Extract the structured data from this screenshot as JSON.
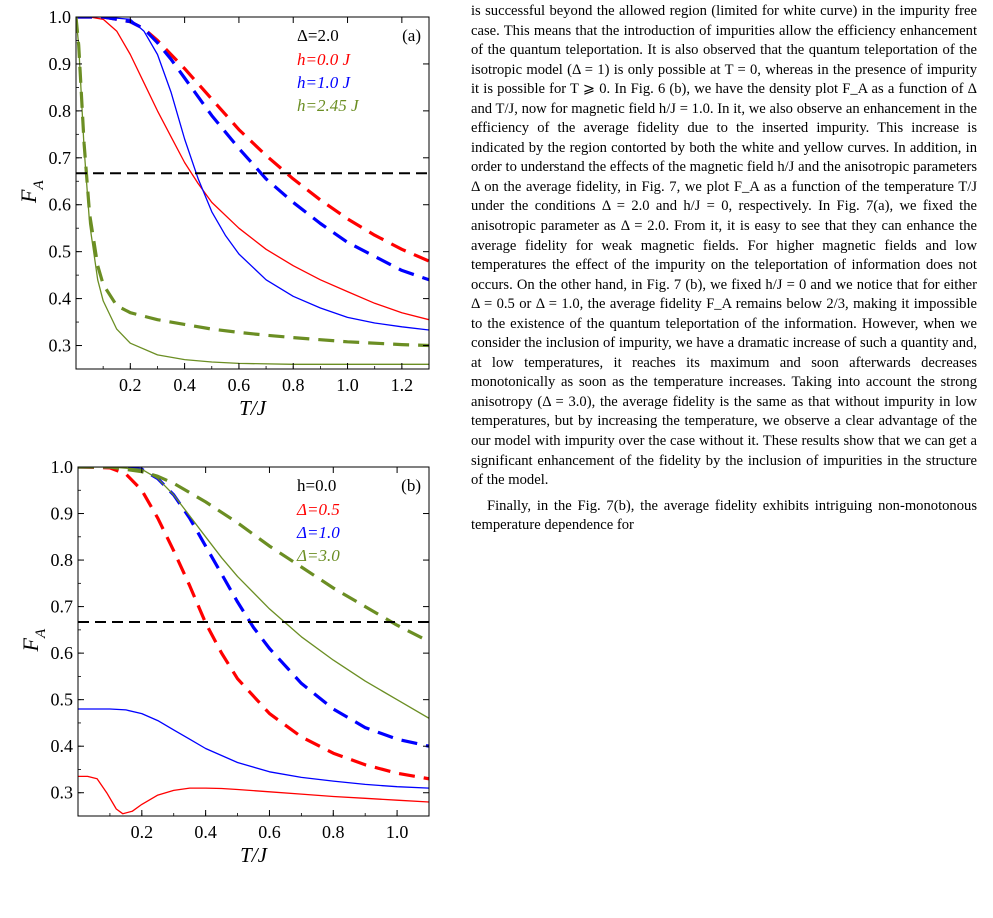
{
  "figure": {
    "panels": [
      {
        "panel_label": "(a)",
        "ylabel": "F",
        "ylabel_sub": "A",
        "xlabel": "T/J",
        "legend_title": "Δ=2.0",
        "legend": [
          {
            "text": "h=0.0 J",
            "color": "#ff0000"
          },
          {
            "text": "h=1.0 J",
            "color": "#0000ff"
          },
          {
            "text": "h=2.45 J",
            "color": "#6b8e23"
          }
        ]
      },
      {
        "panel_label": "(b)",
        "ylabel": "F",
        "ylabel_sub": "A",
        "xlabel": "T/J",
        "legend_title": "h=0.0",
        "legend": [
          {
            "text": "Δ=0.5",
            "color": "#ff0000"
          },
          {
            "text": "Δ=1.0",
            "color": "#0000ff"
          },
          {
            "text": "Δ=3.0",
            "color": "#6b8e23"
          }
        ]
      }
    ]
  },
  "chart_data": [
    {
      "type": "line",
      "title": "",
      "panel": "(a)",
      "xlabel": "T/J",
      "ylabel": "F_A",
      "xlim": [
        0,
        1.3
      ],
      "ylim": [
        0.25,
        1.0
      ],
      "xticks": [
        0.2,
        0.4,
        0.6,
        0.8,
        1.0,
        1.2
      ],
      "yticks": [
        0.3,
        0.4,
        0.5,
        0.6,
        0.7,
        0.8,
        0.9,
        1.0
      ],
      "series": [
        {
          "name": "h=0.0 J",
          "style": "solid",
          "color": "#ff0000",
          "x": [
            0,
            0.05,
            0.1,
            0.15,
            0.2,
            0.25,
            0.3,
            0.35,
            0.4,
            0.45,
            0.5,
            0.6,
            0.7,
            0.8,
            0.9,
            1.0,
            1.1,
            1.2,
            1.3
          ],
          "y": [
            1.0,
            1.0,
            0.995,
            0.97,
            0.92,
            0.86,
            0.8,
            0.745,
            0.69,
            0.645,
            0.605,
            0.55,
            0.505,
            0.47,
            0.44,
            0.415,
            0.39,
            0.37,
            0.355
          ]
        },
        {
          "name": "h=0.0 J",
          "style": "dashed",
          "color": "#ff0000",
          "x": [
            0,
            0.1,
            0.2,
            0.25,
            0.3,
            0.35,
            0.4,
            0.5,
            0.6,
            0.7,
            0.8,
            0.9,
            1.0,
            1.1,
            1.2,
            1.3
          ],
          "y": [
            1.0,
            1.0,
            0.99,
            0.975,
            0.95,
            0.92,
            0.89,
            0.825,
            0.76,
            0.705,
            0.655,
            0.61,
            0.57,
            0.535,
            0.505,
            0.48
          ]
        },
        {
          "name": "h=1.0 J",
          "style": "solid",
          "color": "#0000ff",
          "x": [
            0,
            0.1,
            0.2,
            0.25,
            0.3,
            0.35,
            0.4,
            0.45,
            0.5,
            0.55,
            0.6,
            0.7,
            0.8,
            0.9,
            1.0,
            1.1,
            1.2,
            1.3
          ],
          "y": [
            1.0,
            1.0,
            0.995,
            0.97,
            0.92,
            0.84,
            0.74,
            0.655,
            0.585,
            0.535,
            0.495,
            0.44,
            0.405,
            0.38,
            0.36,
            0.348,
            0.34,
            0.333
          ]
        },
        {
          "name": "h=1.0 J",
          "style": "dashed",
          "color": "#0000ff",
          "x": [
            0,
            0.1,
            0.2,
            0.25,
            0.3,
            0.35,
            0.4,
            0.5,
            0.6,
            0.7,
            0.8,
            0.9,
            1.0,
            1.1,
            1.2,
            1.3
          ],
          "y": [
            1.0,
            1.0,
            0.99,
            0.975,
            0.945,
            0.91,
            0.87,
            0.79,
            0.72,
            0.655,
            0.605,
            0.56,
            0.52,
            0.49,
            0.46,
            0.44
          ]
        },
        {
          "name": "h=2.45 J",
          "style": "solid",
          "color": "#6b8e23",
          "x": [
            0,
            0.01,
            0.03,
            0.05,
            0.08,
            0.1,
            0.15,
            0.2,
            0.3,
            0.4,
            0.5,
            0.6,
            0.8,
            1.0,
            1.3
          ],
          "y": [
            1.0,
            0.94,
            0.72,
            0.56,
            0.44,
            0.395,
            0.335,
            0.305,
            0.28,
            0.27,
            0.265,
            0.262,
            0.26,
            0.26,
            0.26
          ]
        },
        {
          "name": "h=2.45 J",
          "style": "dashed",
          "color": "#6b8e23",
          "x": [
            0,
            0.01,
            0.03,
            0.05,
            0.08,
            0.1,
            0.15,
            0.2,
            0.3,
            0.4,
            0.5,
            0.6,
            0.7,
            0.8,
            1.0,
            1.2,
            1.3
          ],
          "y": [
            1.0,
            0.94,
            0.73,
            0.58,
            0.47,
            0.43,
            0.385,
            0.37,
            0.355,
            0.345,
            0.335,
            0.328,
            0.322,
            0.317,
            0.308,
            0.302,
            0.3
          ]
        },
        {
          "name": "",
          "style": "dashed",
          "color": "#000000",
          "x": [
            0,
            1.3
          ],
          "y": [
            0.667,
            0.667
          ]
        }
      ],
      "grid": false,
      "legend_position": "top-right"
    },
    {
      "type": "line",
      "title": "",
      "panel": "(b)",
      "xlabel": "T/J",
      "ylabel": "F_A",
      "xlim": [
        0,
        1.1
      ],
      "ylim": [
        0.25,
        1.0
      ],
      "xticks": [
        0.2,
        0.4,
        0.6,
        0.8,
        1.0
      ],
      "yticks": [
        0.3,
        0.4,
        0.5,
        0.6,
        0.7,
        0.8,
        0.9,
        1.0
      ],
      "series": [
        {
          "name": "Δ=0.5",
          "style": "solid",
          "color": "#ff0000",
          "x": [
            0,
            0.03,
            0.06,
            0.09,
            0.12,
            0.14,
            0.17,
            0.2,
            0.25,
            0.3,
            0.35,
            0.4,
            0.45,
            0.5,
            0.6,
            0.7,
            0.8,
            0.9,
            1.0,
            1.1
          ],
          "y": [
            0.335,
            0.335,
            0.33,
            0.3,
            0.265,
            0.255,
            0.26,
            0.275,
            0.295,
            0.305,
            0.31,
            0.31,
            0.309,
            0.307,
            0.302,
            0.297,
            0.292,
            0.288,
            0.284,
            0.28
          ]
        },
        {
          "name": "Δ=0.5",
          "style": "dashed",
          "color": "#ff0000",
          "x": [
            0,
            0.1,
            0.15,
            0.2,
            0.25,
            0.3,
            0.35,
            0.4,
            0.45,
            0.5,
            0.6,
            0.7,
            0.8,
            0.9,
            1.0,
            1.1
          ],
          "y": [
            1.0,
            0.998,
            0.985,
            0.95,
            0.89,
            0.82,
            0.745,
            0.665,
            0.6,
            0.545,
            0.47,
            0.42,
            0.385,
            0.36,
            0.342,
            0.33
          ]
        },
        {
          "name": "Δ=1.0",
          "style": "solid",
          "color": "#0000ff",
          "x": [
            0,
            0.1,
            0.15,
            0.2,
            0.25,
            0.3,
            0.35,
            0.4,
            0.5,
            0.6,
            0.7,
            0.8,
            0.9,
            1.0,
            1.1
          ],
          "y": [
            0.48,
            0.48,
            0.478,
            0.47,
            0.455,
            0.435,
            0.415,
            0.395,
            0.365,
            0.345,
            0.333,
            0.325,
            0.318,
            0.313,
            0.31
          ]
        },
        {
          "name": "Δ=1.0",
          "style": "dashed",
          "color": "#0000ff",
          "x": [
            0,
            0.1,
            0.2,
            0.25,
            0.3,
            0.35,
            0.4,
            0.45,
            0.5,
            0.55,
            0.6,
            0.7,
            0.8,
            0.9,
            1.0,
            1.1
          ],
          "y": [
            1.0,
            1.0,
            0.995,
            0.975,
            0.94,
            0.89,
            0.83,
            0.77,
            0.71,
            0.655,
            0.61,
            0.535,
            0.48,
            0.44,
            0.415,
            0.4
          ]
        },
        {
          "name": "Δ=3.0",
          "style": "solid",
          "color": "#6b8e23",
          "x": [
            0,
            0.1,
            0.2,
            0.25,
            0.3,
            0.35,
            0.4,
            0.45,
            0.5,
            0.6,
            0.7,
            0.8,
            0.9,
            1.0,
            1.1
          ],
          "y": [
            1.0,
            1.0,
            0.995,
            0.975,
            0.94,
            0.895,
            0.85,
            0.805,
            0.765,
            0.695,
            0.635,
            0.585,
            0.54,
            0.5,
            0.46
          ]
        },
        {
          "name": "Δ=3.0",
          "style": "dashed",
          "color": "#6b8e23",
          "x": [
            0,
            0.1,
            0.2,
            0.25,
            0.3,
            0.4,
            0.5,
            0.6,
            0.7,
            0.8,
            0.9,
            1.0,
            1.1
          ],
          "y": [
            1.0,
            1.0,
            0.99,
            0.98,
            0.965,
            0.925,
            0.88,
            0.83,
            0.785,
            0.74,
            0.7,
            0.66,
            0.625
          ]
        },
        {
          "name": "",
          "style": "dashed",
          "color": "#000000",
          "x": [
            0,
            1.1
          ],
          "y": [
            0.667,
            0.667
          ]
        }
      ],
      "grid": false,
      "legend_position": "top-right"
    }
  ],
  "text": {
    "paragraph1": "is successful beyond the allowed region (limited for white curve) in the impurity free case. This means that the introduction of impurities allow the efficiency enhancement of the quantum teleportation. It is also observed that the quantum teleportation of the isotropic model (Δ = 1) is only possible at T = 0, whereas in the presence of impurity it is possible for T ⩾ 0. In Fig. 6 (b), we have the density plot F_A as a function of Δ and T/J, now for magnetic field h/J = 1.0. In it, we also observe an enhancement in the efficiency of the average fidelity due to the inserted impurity. This increase is indicated by the region contorted by both the white and yellow curves. In addition, in order to understand the effects of the magnetic field h/J and the anisotropic parameters Δ on the average fidelity, in Fig. 7, we plot F_A as a function of the temperature T/J under the conditions Δ = 2.0 and h/J = 0, respectively. In Fig. 7(a), we fixed the anisotropic parameter as Δ = 2.0. From it, it is easy to see that they can enhance the average fidelity for weak magnetic fields. For higher magnetic fields and low temperatures the effect of the impurity on the teleportation of information does not occurs. On the other hand, in Fig. 7 (b), we fixed h/J = 0 and we notice that for either Δ = 0.5 or Δ = 1.0, the average fidelity F_A remains below 2/3, making it impossible to the existence of the quantum teleportation of the information. However, when we consider the inclusion of impurity, we have a dramatic increase of such a quantity and, at low temperatures, it reaches its maximum and soon afterwards decreases monotonically as soon as the temperature increases. Taking into account the strong anisotropy (Δ = 3.0), the average fidelity is the same as that without impurity in low temperatures, but by increasing the temperature, we observe a clear advantage of the our model with impurity over the case without it. These results show that we can get a significant enhancement of the fidelity by the inclusion of impurities in the structure of the model.",
    "paragraph2": "Finally, in the Fig. 7(b), the average fidelity exhibits intriguing non-monotonous temperature dependence for"
  }
}
